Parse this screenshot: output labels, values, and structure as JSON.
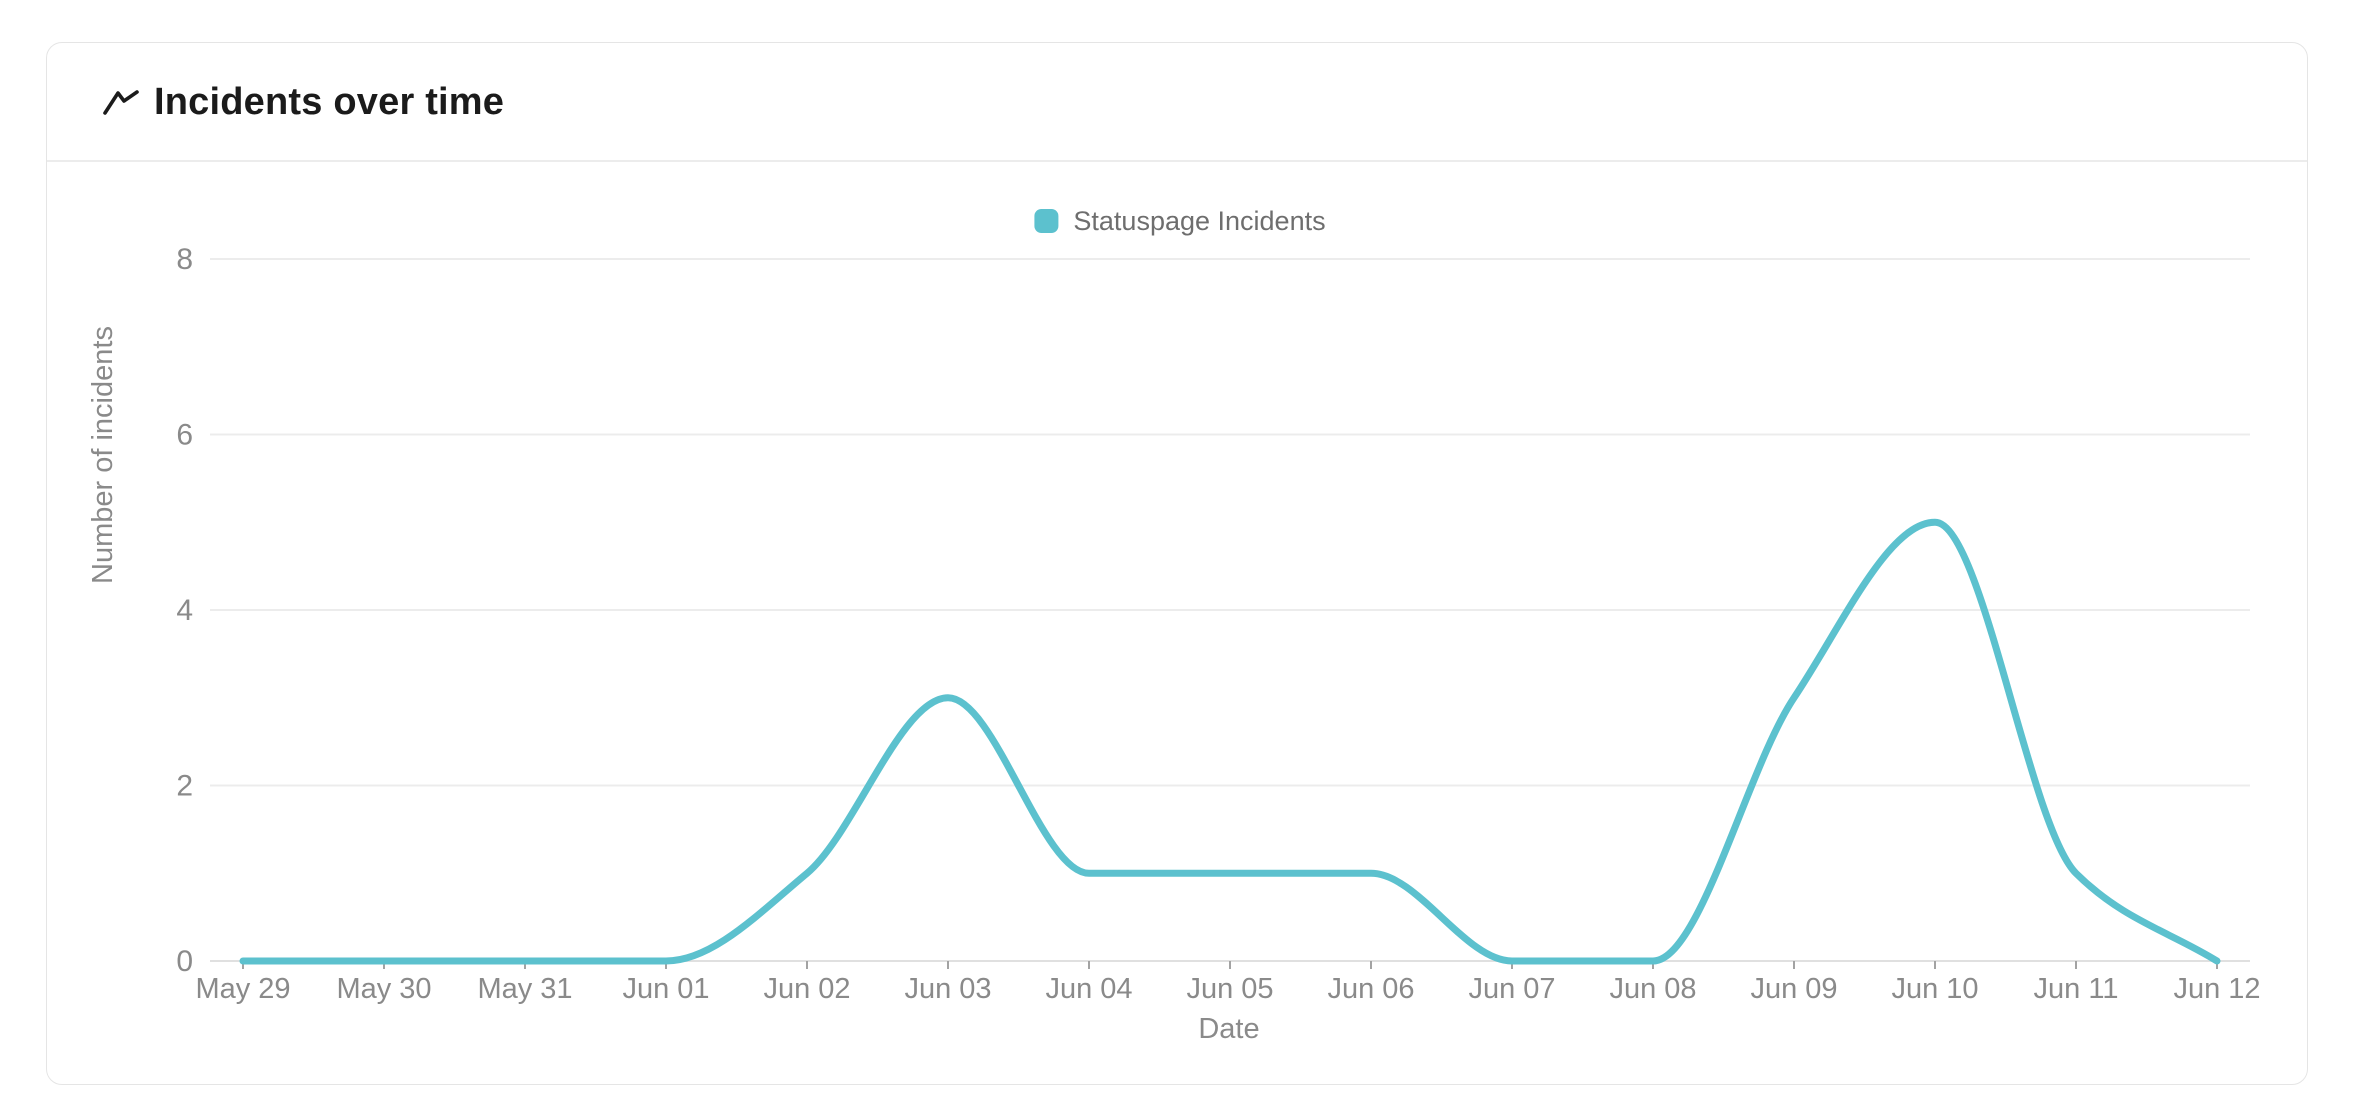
{
  "header": {
    "title": "Incidents over time",
    "icon": "trending-up-icon"
  },
  "colors": {
    "accent_teal": "#5CC1CE",
    "grid_line": "#ECECEC",
    "axis_line": "#E0E0E0",
    "tick_mark": "#A3A3A3",
    "axis_text": "#8A8A8A",
    "legend_text": "#6E6E6E",
    "title_text": "#1B1B1B",
    "card_border": "#E5E5E5"
  },
  "chart_data": {
    "type": "line",
    "title": "Incidents over time",
    "categories": [
      "May 29",
      "May 30",
      "May 31",
      "Jun 01",
      "Jun 02",
      "Jun 03",
      "Jun 04",
      "Jun 05",
      "Jun 06",
      "Jun 07",
      "Jun 08",
      "Jun 09",
      "Jun 10",
      "Jun 11",
      "Jun 12"
    ],
    "series": [
      {
        "name": "Statuspage Incidents",
        "color": "#5CC1CE",
        "values": [
          0,
          0,
          0,
          0,
          1,
          3,
          1,
          1,
          1,
          0,
          0,
          3,
          5,
          1,
          0
        ]
      }
    ],
    "xlabel": "Date",
    "ylabel": "Number of incidents",
    "ylim": [
      0,
      8
    ],
    "yticks": [
      0,
      2,
      4,
      6,
      8
    ],
    "grid": true,
    "smooth": true,
    "legend_position": "top-center"
  }
}
